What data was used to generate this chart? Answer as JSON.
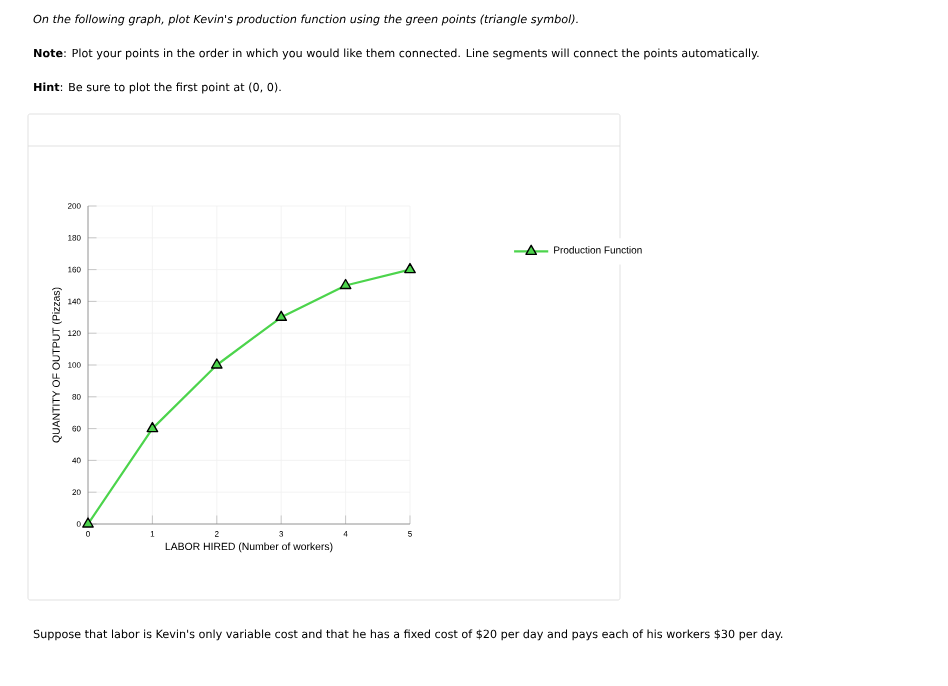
{
  "chart_data": {
    "type": "line",
    "title": "On the following graph, plot Kevin's production function using the green points (triangle symbol).",
    "annotations": [
      "**Note**: Plot your points in the order in which you would like them connected. Line segments will connect the points automatically.",
      "**Hint**: Be sure to plot the first point at (0, 0).",
      "Suppose that labor is Kevin's only variable cost and that he has a fixed cost of $20 per day and pays each of his workers $30 per day."
    ],
    "xlabel": "LABOR HIRED (Number of workers)",
    "ylabel": "QUANTITY OF OUTPUT (Pizzas)",
    "x": [
      0,
      1,
      2,
      3,
      4,
      5
    ],
    "series": [
      {
        "name": "Production Function",
        "color": "#4cd44c",
        "values": [
          0,
          60,
          100,
          130,
          150,
          160
        ]
      }
    ],
    "xlim": [
      0,
      5
    ],
    "ylim": [
      0,
      200
    ],
    "xticks": [
      0,
      1,
      2,
      3,
      4,
      5
    ],
    "yticks": [
      0,
      20,
      40,
      60,
      80,
      100,
      120,
      140,
      160,
      180,
      200
    ],
    "grid": true,
    "legend": "right",
    "marker": "triangle"
  }
}
